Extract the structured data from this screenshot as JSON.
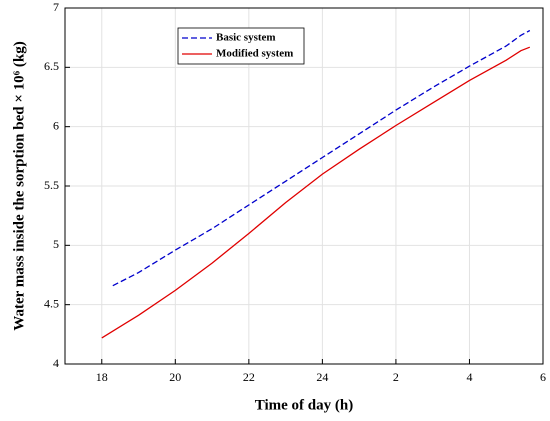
{
  "chart_data": {
    "type": "line",
    "x_label": "Time of day (h)",
    "y_label": "Water mass inside the sorption bed × 10⁶ (kg)",
    "xlim": [
      17,
      30
    ],
    "xticks": [
      18,
      20,
      22,
      24,
      {
        "value": 26,
        "label": "2"
      },
      {
        "value": 28,
        "label": "4"
      },
      {
        "value": 30,
        "label": "6"
      }
    ],
    "ylim": [
      4,
      7
    ],
    "yticks": [
      4,
      4.5,
      5,
      5.5,
      6,
      6.5,
      7
    ],
    "grid": true,
    "legend": "upper left",
    "series": [
      {
        "name": "Basic system",
        "color": "#0000cc",
        "dash": true,
        "x": [
          18.3,
          19,
          20,
          21,
          22,
          23,
          24,
          25,
          26,
          27,
          28,
          29,
          29.4,
          29.64
        ],
        "values": [
          4.66,
          4.77,
          4.96,
          5.14,
          5.34,
          5.54,
          5.74,
          5.94,
          6.14,
          6.33,
          6.51,
          6.68,
          6.77,
          6.81
        ]
      },
      {
        "name": "Modified system",
        "color": "#e00000",
        "dash": false,
        "x": [
          18,
          19,
          20,
          21,
          22,
          23,
          24,
          25,
          26,
          27,
          28,
          29,
          29.4,
          29.64
        ],
        "values": [
          4.22,
          4.41,
          4.62,
          4.85,
          5.1,
          5.36,
          5.6,
          5.81,
          6.01,
          6.2,
          6.39,
          6.56,
          6.64,
          6.67
        ]
      }
    ]
  }
}
